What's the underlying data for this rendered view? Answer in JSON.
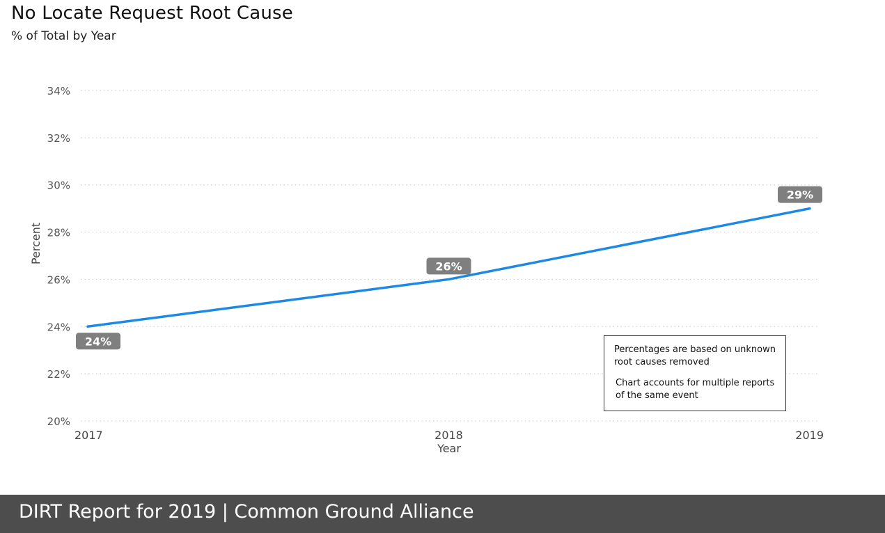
{
  "chart_data": {
    "type": "line",
    "title": "No Locate Request Root Cause",
    "subtitle": "% of Total by Year",
    "xlabel": "Year",
    "ylabel": "Percent",
    "x": [
      "2017",
      "2018",
      "2019"
    ],
    "series": [
      {
        "values": [
          24,
          26,
          29
        ],
        "color": "#1e88e5"
      }
    ],
    "data_labels": [
      "24%",
      "26%",
      "29%"
    ],
    "ylim": [
      20,
      34
    ],
    "yticks": [
      20,
      22,
      24,
      26,
      28,
      30,
      32,
      34
    ],
    "ytick_labels": [
      "20%",
      "22%",
      "24%",
      "26%",
      "28%",
      "30%",
      "32%",
      "34%"
    ],
    "grid": "horizontal-dotted",
    "label_color": "#7f7f7f"
  },
  "notes": {
    "line1": "Percentages are based on unknown root causes removed",
    "line2": "Chart accounts for multiple reports of the same event"
  },
  "footer": {
    "text": "DIRT Report for 2019  | Common Ground Alliance",
    "background": "#4d4d4d"
  }
}
